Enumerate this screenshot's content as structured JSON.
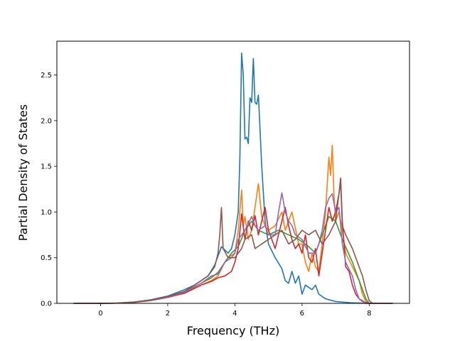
{
  "chart_data": {
    "type": "line",
    "xlabel": "Frequency (THz)",
    "ylabel": "Partial Density of States",
    "xlim": [
      -1.3,
      9.2
    ],
    "ylim": [
      0,
      2.87
    ],
    "xticks": [
      0,
      2,
      4,
      6,
      8
    ],
    "yticks": [
      0.0,
      0.5,
      1.0,
      1.5,
      2.0,
      2.5
    ],
    "xtick_labels": [
      "0",
      "2",
      "4",
      "6",
      "8"
    ],
    "ytick_labels": [
      "0.0",
      "0.5",
      "1.0",
      "1.5",
      "2.0",
      "2.5"
    ],
    "grid": false,
    "legend": "none",
    "series": [
      {
        "color": "#1f77b4",
        "points": [
          [
            -0.8,
            0
          ],
          [
            0,
            0
          ],
          [
            0.5,
            0.003
          ],
          [
            1,
            0.015
          ],
          [
            1.5,
            0.04
          ],
          [
            2,
            0.08
          ],
          [
            2.5,
            0.15
          ],
          [
            2.8,
            0.2
          ],
          [
            3,
            0.25
          ],
          [
            3.2,
            0.3
          ],
          [
            3.4,
            0.42
          ],
          [
            3.6,
            0.62
          ],
          [
            3.8,
            0.55
          ],
          [
            3.9,
            0.6
          ],
          [
            4.0,
            0.75
          ],
          [
            4.1,
            1.0
          ],
          [
            4.15,
            1.6
          ],
          [
            4.2,
            2.74
          ],
          [
            4.25,
            2.5
          ],
          [
            4.3,
            1.8
          ],
          [
            4.35,
            1.82
          ],
          [
            4.4,
            1.75
          ],
          [
            4.45,
            2.25
          ],
          [
            4.5,
            2.2
          ],
          [
            4.55,
            2.68
          ],
          [
            4.6,
            2.2
          ],
          [
            4.65,
            2.18
          ],
          [
            4.7,
            2.28
          ],
          [
            4.75,
            1.9
          ],
          [
            4.8,
            1.5
          ],
          [
            4.9,
            0.9
          ],
          [
            5.0,
            0.65
          ],
          [
            5.2,
            0.5
          ],
          [
            5.4,
            0.38
          ],
          [
            5.5,
            0.25
          ],
          [
            5.6,
            0.22
          ],
          [
            5.7,
            0.35
          ],
          [
            5.8,
            0.22
          ],
          [
            5.9,
            0.3
          ],
          [
            6.0,
            0.1
          ],
          [
            6.1,
            0.2
          ],
          [
            6.3,
            0.15
          ],
          [
            6.4,
            0.2
          ],
          [
            6.5,
            0.1
          ],
          [
            6.7,
            0.05
          ],
          [
            7.0,
            0.02
          ],
          [
            7.5,
            0.005
          ],
          [
            8,
            0
          ],
          [
            8.7,
            0
          ]
        ]
      },
      {
        "color": "#ff7f0e",
        "points": [
          [
            -0.8,
            0
          ],
          [
            0,
            0
          ],
          [
            0.5,
            0.003
          ],
          [
            1,
            0.012
          ],
          [
            1.5,
            0.035
          ],
          [
            2,
            0.07
          ],
          [
            2.5,
            0.12
          ],
          [
            3.0,
            0.2
          ],
          [
            3.3,
            0.25
          ],
          [
            3.5,
            0.3
          ],
          [
            3.7,
            0.45
          ],
          [
            3.8,
            0.5
          ],
          [
            4.0,
            0.55
          ],
          [
            4.1,
            0.8
          ],
          [
            4.2,
            1.24
          ],
          [
            4.25,
            0.85
          ],
          [
            4.3,
            0.95
          ],
          [
            4.4,
            0.7
          ],
          [
            4.5,
            0.8
          ],
          [
            4.6,
            1.05
          ],
          [
            4.7,
            1.31
          ],
          [
            4.8,
            0.95
          ],
          [
            4.9,
            0.85
          ],
          [
            5.0,
            0.8
          ],
          [
            5.2,
            0.85
          ],
          [
            5.4,
            1.0
          ],
          [
            5.5,
            0.8
          ],
          [
            5.7,
            1.0
          ],
          [
            5.9,
            0.65
          ],
          [
            6.0,
            0.65
          ],
          [
            6.1,
            0.45
          ],
          [
            6.2,
            0.35
          ],
          [
            6.3,
            0.55
          ],
          [
            6.4,
            0.4
          ],
          [
            6.5,
            0.35
          ],
          [
            6.6,
            0.65
          ],
          [
            6.7,
            1.0
          ],
          [
            6.8,
            1.6
          ],
          [
            6.85,
            1.4
          ],
          [
            6.9,
            1.73
          ],
          [
            6.95,
            1.2
          ],
          [
            7.0,
            0.9
          ],
          [
            7.1,
            1.0
          ],
          [
            7.2,
            0.8
          ],
          [
            7.3,
            0.55
          ],
          [
            7.5,
            0.4
          ],
          [
            7.7,
            0.25
          ],
          [
            7.8,
            0.1
          ],
          [
            7.9,
            0.02
          ],
          [
            8.0,
            0
          ],
          [
            8.7,
            0
          ]
        ]
      },
      {
        "color": "#2ca02c",
        "points": [
          [
            -0.8,
            0
          ],
          [
            0,
            0
          ],
          [
            0.5,
            0.002
          ],
          [
            1,
            0.012
          ],
          [
            1.5,
            0.035
          ],
          [
            2,
            0.075
          ],
          [
            2.5,
            0.13
          ],
          [
            3.0,
            0.22
          ],
          [
            3.3,
            0.28
          ],
          [
            3.5,
            0.34
          ],
          [
            3.7,
            0.45
          ],
          [
            3.9,
            0.55
          ],
          [
            4.1,
            0.62
          ],
          [
            4.3,
            0.8
          ],
          [
            4.5,
            0.9
          ],
          [
            4.7,
            0.8
          ],
          [
            5.0,
            0.75
          ],
          [
            5.3,
            0.8
          ],
          [
            5.6,
            0.75
          ],
          [
            5.9,
            0.7
          ],
          [
            6.2,
            0.62
          ],
          [
            6.4,
            0.55
          ],
          [
            6.6,
            0.75
          ],
          [
            6.8,
            0.95
          ],
          [
            7.0,
            0.9
          ],
          [
            7.2,
            0.7
          ],
          [
            7.5,
            0.45
          ],
          [
            7.7,
            0.25
          ],
          [
            7.9,
            0.05
          ],
          [
            8.0,
            0
          ],
          [
            8.7,
            0
          ]
        ]
      },
      {
        "color": "#d62728",
        "points": [
          [
            -0.8,
            0
          ],
          [
            0,
            0
          ],
          [
            0.5,
            0.002
          ],
          [
            1,
            0.01
          ],
          [
            1.5,
            0.03
          ],
          [
            2,
            0.065
          ],
          [
            2.5,
            0.11
          ],
          [
            3.0,
            0.2
          ],
          [
            3.3,
            0.24
          ],
          [
            3.5,
            0.28
          ],
          [
            3.7,
            0.3
          ],
          [
            3.9,
            0.35
          ],
          [
            4.0,
            0.45
          ],
          [
            4.1,
            0.6
          ],
          [
            4.2,
            0.98
          ],
          [
            4.3,
            0.7
          ],
          [
            4.4,
            0.9
          ],
          [
            4.5,
            0.8
          ],
          [
            4.6,
            0.96
          ],
          [
            4.7,
            0.75
          ],
          [
            4.8,
            0.9
          ],
          [
            4.9,
            1.05
          ],
          [
            5.0,
            0.8
          ],
          [
            5.1,
            0.7
          ],
          [
            5.2,
            0.6
          ],
          [
            5.3,
            0.75
          ],
          [
            5.4,
            0.9
          ],
          [
            5.5,
            1.05
          ],
          [
            5.6,
            0.85
          ],
          [
            5.7,
            0.7
          ],
          [
            5.8,
            0.6
          ],
          [
            5.9,
            0.65
          ],
          [
            6.0,
            0.55
          ],
          [
            6.1,
            0.75
          ],
          [
            6.2,
            0.5
          ],
          [
            6.3,
            0.45
          ],
          [
            6.4,
            0.6
          ],
          [
            6.5,
            0.3
          ],
          [
            6.6,
            0.55
          ],
          [
            6.7,
            0.8
          ],
          [
            6.8,
            1.05
          ],
          [
            6.9,
            0.9
          ],
          [
            7.0,
            1.0
          ],
          [
            7.1,
            1.2
          ],
          [
            7.15,
            1.37
          ],
          [
            7.2,
            0.9
          ],
          [
            7.3,
            0.4
          ],
          [
            7.4,
            0.35
          ],
          [
            7.5,
            0.2
          ],
          [
            7.6,
            0.1
          ],
          [
            7.7,
            0.05
          ],
          [
            7.8,
            0.02
          ],
          [
            8.0,
            0
          ],
          [
            8.7,
            0
          ]
        ]
      },
      {
        "color": "#9467bd",
        "points": [
          [
            -0.8,
            0
          ],
          [
            0,
            0
          ],
          [
            0.5,
            0.002
          ],
          [
            1,
            0.011
          ],
          [
            1.5,
            0.033
          ],
          [
            2,
            0.07
          ],
          [
            2.5,
            0.12
          ],
          [
            3.0,
            0.22
          ],
          [
            3.3,
            0.3
          ],
          [
            3.5,
            0.32
          ],
          [
            3.7,
            0.45
          ],
          [
            3.9,
            0.5
          ],
          [
            4.0,
            0.55
          ],
          [
            4.1,
            0.7
          ],
          [
            4.2,
            0.75
          ],
          [
            4.3,
            0.8
          ],
          [
            4.5,
            0.95
          ],
          [
            4.6,
            0.85
          ],
          [
            4.7,
            0.8
          ],
          [
            4.9,
            0.85
          ],
          [
            5.0,
            0.75
          ],
          [
            5.2,
            0.75
          ],
          [
            5.3,
            1.0
          ],
          [
            5.4,
            1.21
          ],
          [
            5.5,
            1.0
          ],
          [
            5.6,
            0.9
          ],
          [
            5.7,
            0.85
          ],
          [
            5.8,
            0.75
          ],
          [
            6.0,
            0.7
          ],
          [
            6.2,
            0.55
          ],
          [
            6.4,
            0.55
          ],
          [
            6.5,
            0.65
          ],
          [
            6.6,
            0.8
          ],
          [
            6.7,
            1.05
          ],
          [
            6.8,
            1.15
          ],
          [
            6.9,
            1.2
          ],
          [
            7.0,
            1.0
          ],
          [
            7.1,
            1.05
          ],
          [
            7.2,
            0.65
          ],
          [
            7.3,
            0.45
          ],
          [
            7.5,
            0.3
          ],
          [
            7.6,
            0.15
          ],
          [
            7.7,
            0.05
          ],
          [
            7.8,
            0.03
          ],
          [
            7.9,
            0
          ],
          [
            8.7,
            0
          ]
        ]
      },
      {
        "color": "#8c564b",
        "points": [
          [
            -0.8,
            0
          ],
          [
            0,
            0
          ],
          [
            0.5,
            0.002
          ],
          [
            1,
            0.012
          ],
          [
            1.5,
            0.035
          ],
          [
            2,
            0.075
          ],
          [
            2.5,
            0.13
          ],
          [
            3.0,
            0.25
          ],
          [
            3.2,
            0.3
          ],
          [
            3.4,
            0.4
          ],
          [
            3.5,
            0.55
          ],
          [
            3.55,
            0.75
          ],
          [
            3.6,
            1.05
          ],
          [
            3.65,
            0.6
          ],
          [
            3.8,
            0.5
          ],
          [
            4.0,
            0.5
          ],
          [
            4.2,
            0.6
          ],
          [
            4.3,
            0.7
          ],
          [
            4.5,
            0.75
          ],
          [
            4.6,
            0.6
          ],
          [
            4.8,
            0.65
          ],
          [
            5.0,
            0.7
          ],
          [
            5.2,
            0.75
          ],
          [
            5.4,
            0.8
          ],
          [
            5.6,
            0.65
          ],
          [
            5.8,
            0.7
          ],
          [
            6.0,
            0.8
          ],
          [
            6.2,
            0.75
          ],
          [
            6.4,
            0.8
          ],
          [
            6.6,
            0.65
          ],
          [
            6.8,
            0.75
          ],
          [
            7.0,
            0.9
          ],
          [
            7.1,
            1.2
          ],
          [
            7.15,
            1.33
          ],
          [
            7.2,
            0.85
          ],
          [
            7.3,
            0.75
          ],
          [
            7.5,
            0.6
          ],
          [
            7.7,
            0.4
          ],
          [
            7.8,
            0.3
          ],
          [
            7.9,
            0.15
          ],
          [
            8.0,
            0.03
          ],
          [
            8.1,
            0
          ],
          [
            8.7,
            0
          ]
        ]
      }
    ]
  }
}
